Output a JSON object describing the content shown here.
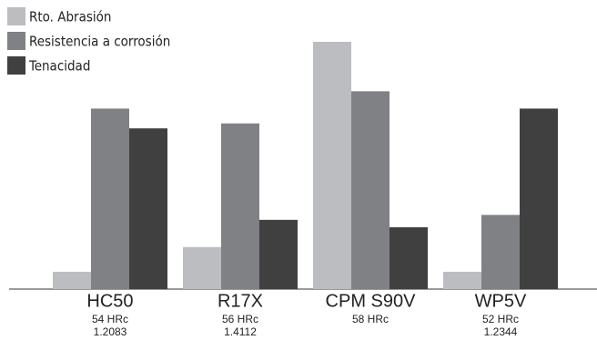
{
  "chart_data": {
    "type": "bar",
    "categories": [
      "HC50",
      "R17X",
      "CPM S90V",
      "WP5V"
    ],
    "category_sublabels": [
      [
        "54 HRc",
        "1.2083"
      ],
      [
        "56 HRc",
        "1.4112"
      ],
      [
        "58 HRc"
      ],
      [
        "52 HRc",
        "1.2344"
      ]
    ],
    "series": [
      {
        "name": "Rto. Abrasión",
        "color": "#bcbdc0",
        "values": [
          0.7,
          1.7,
          10,
          0.7
        ]
      },
      {
        "name": "Resistencia a corrosión",
        "color": "#808184",
        "values": [
          7.3,
          6.7,
          8,
          3
        ]
      },
      {
        "name": "Tenacidad",
        "color": "#404041",
        "values": [
          6.5,
          2.8,
          2.5,
          7.3
        ]
      }
    ],
    "ylim": [
      0,
      10
    ],
    "legend": "top-left"
  }
}
